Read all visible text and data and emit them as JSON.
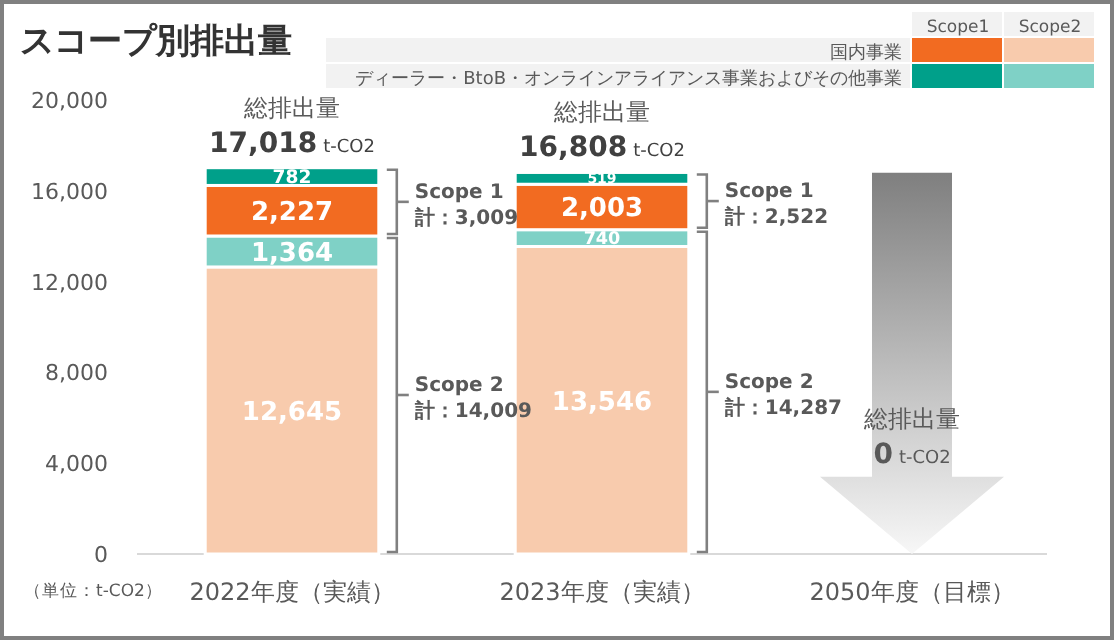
{
  "chart_data": {
    "type": "bar",
    "stacked": true,
    "title": "スコープ別排出量",
    "categories": [
      "2022年度（実績）",
      "2023年度（実績）",
      "2050年度（目標）"
    ],
    "series": [
      {
        "color": "#f8cbad",
        "values": [
          12645,
          13546,
          0
        ],
        "value_labels": [
          "12,645",
          "13,546",
          null
        ]
      },
      {
        "color": "#7fd1c6",
        "values": [
          1364,
          740,
          0
        ],
        "value_labels": [
          "1,364",
          "740",
          null
        ]
      },
      {
        "name": "国内事業",
        "color": "#f26b21",
        "values": [
          2227,
          2003,
          0
        ],
        "value_labels": [
          "2,227",
          "2,003",
          null
        ]
      },
      {
        "name": "ディーラー・BtoB・オンラインアライアンス事業およびその他事業",
        "color": "#00a08a",
        "values": [
          782,
          519,
          0
        ],
        "value_labels": [
          "782",
          "519",
          null
        ]
      }
    ],
    "totals": [
      "17,018 t-CO2",
      "16,808 t-CO2",
      "0 t-CO2"
    ],
    "ylim": [
      0,
      20000
    ],
    "yticks": [
      0,
      {
        "value": 4000,
        "label": "4,000"
      },
      {
        "value": 8000,
        "label": "8,000"
      },
      {
        "value": 12000,
        "label": "12,000"
      },
      {
        "value": 16000,
        "label": "16,000"
      },
      {
        "value": 20000,
        "label": "20,000"
      }
    ],
    "grid": false,
    "legend": "top right",
    "annotations": [
      "（単位：t-CO2）",
      "Scope1",
      "Scope2",
      {
        "text": "総排出量",
        "x": "2022年度（実績）",
        "y": 17018
      },
      {
        "text": "総排出量",
        "x": "2023年度（実績）",
        "y": 16808
      },
      "Scope 1 計：3,009",
      "Scope 2 計：14,009",
      "Scope 1 計：2,522",
      "Scope 2 計：14,287",
      "総排出量"
    ]
  }
}
